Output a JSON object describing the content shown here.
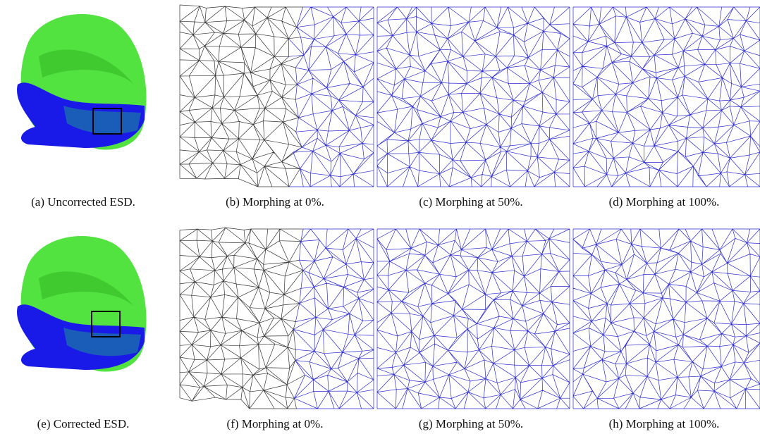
{
  "figure": {
    "panels": [
      {
        "caption": "(a) Uncorrected ESD."
      },
      {
        "caption": "(b) Morphing at 0%."
      },
      {
        "caption": "(c) Morphing at 50%."
      },
      {
        "caption": "(d) Morphing at 100%."
      },
      {
        "caption": "(e) Corrected ESD."
      },
      {
        "caption": "(f) Morphing at 0%."
      },
      {
        "caption": "(g) Morphing at 50%."
      },
      {
        "caption": "(h) Morphing at 100%."
      }
    ]
  }
}
